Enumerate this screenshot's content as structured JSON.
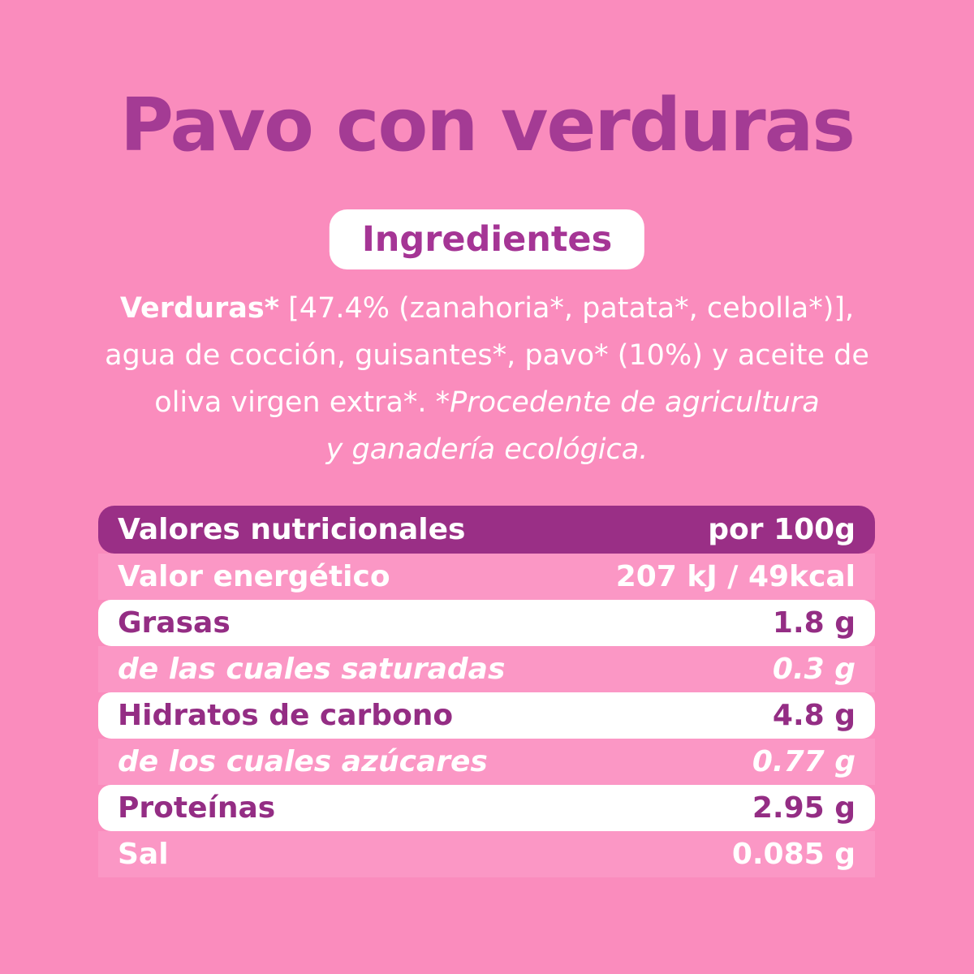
{
  "page": {
    "background_color": "#fa8cbd"
  },
  "colors": {
    "background_pink": "#fa8cbd",
    "row_pink": "#fb97c5",
    "header_purple": "#9a2f86",
    "title_purple": "#a43b94",
    "label_purple": "#942d84",
    "white": "#ffffff"
  },
  "title": "Pavo con verduras",
  "ingredients_badge": "Ingredientes",
  "ingredients": {
    "full_text": "Verduras* [47.4% (zanahoria*, patata*, cebolla*)], agua de cocción, guisantes*, pavo* (10%) y aceite de oliva virgen extra*. *Procedente de agricultura y ganadería ecológica.",
    "line1_bold": "Verduras*",
    "line1_rest": " [47.4% (zanahoria*, patata*, cebolla*)],",
    "line2": "agua de cocción, guisantes*, pavo* (10%) y aceite de",
    "line3_normal": "oliva virgen extra*. ",
    "line3_italic": "*Procedente de agricultura",
    "line4_italic": "y ganadería ecológica."
  },
  "nutrition_table": {
    "header": {
      "label": "Valores nutricionales",
      "value": "por 100g"
    },
    "rows": [
      {
        "label": "Valor energético",
        "value": "207 kJ / 49kcal",
        "variant": "pink"
      },
      {
        "label": "Grasas",
        "value": "1.8 g",
        "variant": "white"
      },
      {
        "label": "de las cuales saturadas",
        "value": "0.3 g",
        "variant": "pink-italic"
      },
      {
        "label": "Hidratos de carbono",
        "value": "4.8 g",
        "variant": "white"
      },
      {
        "label": "de los cuales azúcares",
        "value": "0.77 g",
        "variant": "pink-italic"
      },
      {
        "label": "Proteínas",
        "value": "2.95 g",
        "variant": "white"
      },
      {
        "label": "Sal",
        "value": "0.085 g",
        "variant": "pink"
      }
    ]
  }
}
